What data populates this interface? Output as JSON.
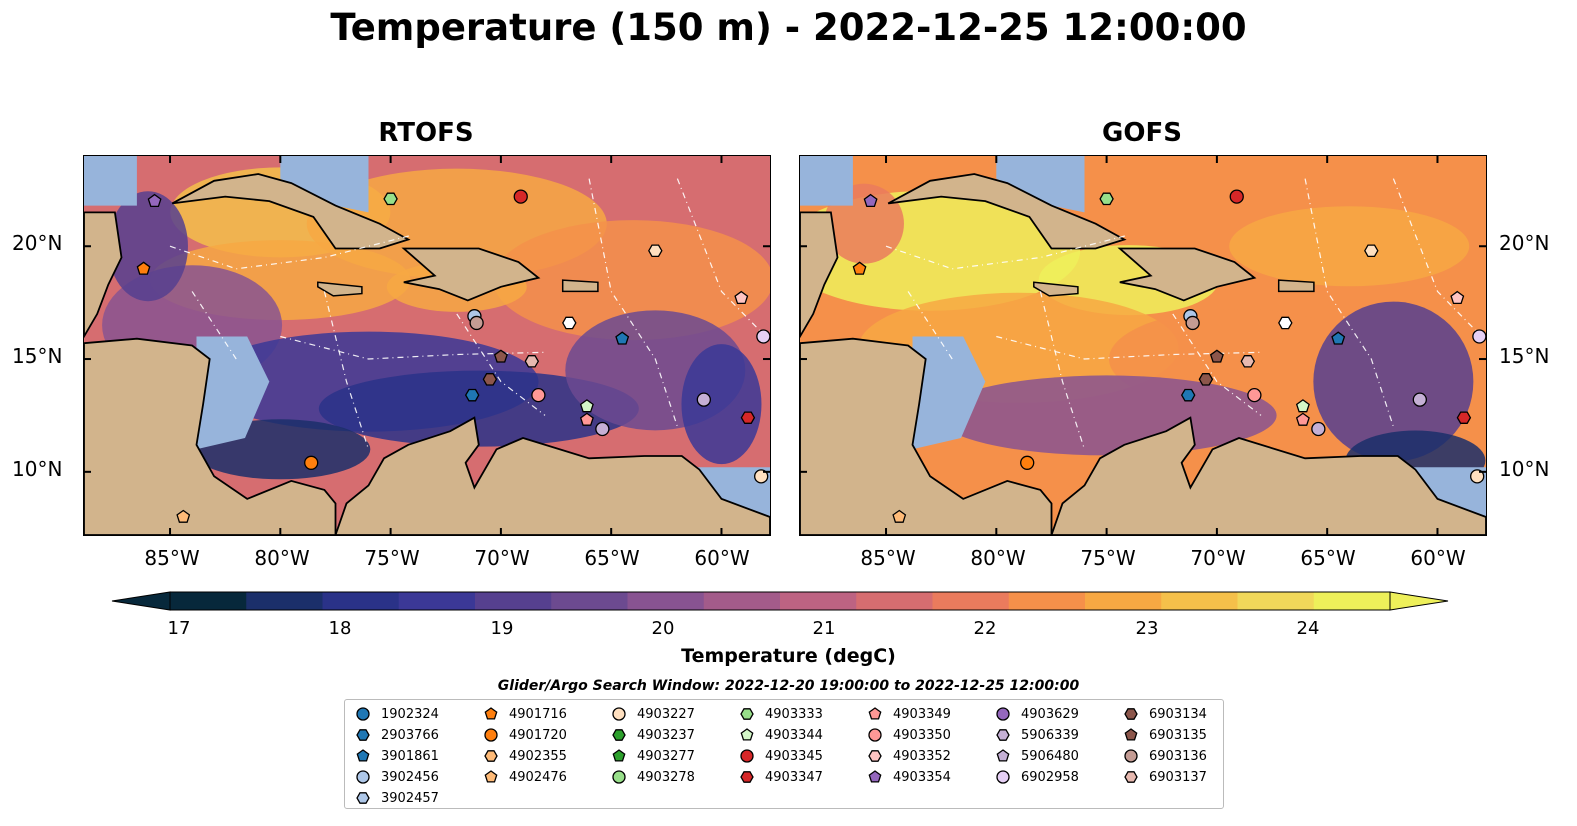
{
  "title": "Temperature (150 m) - 2022-12-25 12:00:00",
  "panels": [
    {
      "title": "RTOFS"
    },
    {
      "title": "GOFS"
    }
  ],
  "lat_labels": [
    "20°N",
    "15°N",
    "10°N"
  ],
  "lon_labels": [
    "85°W",
    "80°W",
    "75°W",
    "70°W",
    "65°W",
    "60°W"
  ],
  "colorbar": {
    "title": "Temperature (degC)",
    "ticks": [
      "17",
      "18",
      "19",
      "20",
      "21",
      "22",
      "23",
      "24"
    ],
    "min": 16.5,
    "max": 24.75,
    "step": 0.5,
    "colors": [
      "#07283b",
      "#1b2f6a",
      "#2a3288",
      "#3b3896",
      "#56408f",
      "#6c4a90",
      "#885391",
      "#a35b8a",
      "#bd6382",
      "#d66d70",
      "#ea7b5d",
      "#f5904a",
      "#f7a843",
      "#f5c04a",
      "#f1d85a",
      "#eef05a"
    ]
  },
  "colors": {
    "land": "#d2b48c",
    "shallow": "#97b4db",
    "deep_low": "#07283b",
    "warm": "#f59a3c"
  },
  "legend": {
    "title": "Glider/Argo Search Window: 2022-12-20 19:00:00 to 2022-12-25 12:00:00",
    "items": [
      {
        "id": "1902324",
        "marker": "circle",
        "color": "#1f77b4"
      },
      {
        "id": "2903766",
        "marker": "hexagon",
        "color": "#1f77b4"
      },
      {
        "id": "3901861",
        "marker": "pentagon",
        "color": "#1f77b4"
      },
      {
        "id": "3902456",
        "marker": "circle",
        "color": "#aec7e8"
      },
      {
        "id": "3902457",
        "marker": "hexagon",
        "color": "#aec7e8"
      },
      {
        "id": "4901716",
        "marker": "pentagon",
        "color": "#ff7f0e"
      },
      {
        "id": "4901720",
        "marker": "circle",
        "color": "#ff7f0e"
      },
      {
        "id": "4902355",
        "marker": "hexagon",
        "color": "#ffbb78"
      },
      {
        "id": "4902476",
        "marker": "pentagon",
        "color": "#ffbb78"
      },
      {
        "id": "4903227",
        "marker": "circle",
        "color": "#ffe0c0"
      },
      {
        "id": "4903237",
        "marker": "hexagon",
        "color": "#2ca02c"
      },
      {
        "id": "4903277",
        "marker": "pentagon",
        "color": "#2ca02c"
      },
      {
        "id": "4903278",
        "marker": "circle",
        "color": "#98df8a"
      },
      {
        "id": "4903333",
        "marker": "hexagon",
        "color": "#98df8a"
      },
      {
        "id": "4903344",
        "marker": "pentagon",
        "color": "#d4f7c8"
      },
      {
        "id": "4903345",
        "marker": "circle",
        "color": "#d62728"
      },
      {
        "id": "4903347",
        "marker": "hexagon",
        "color": "#d62728"
      },
      {
        "id": "4903349",
        "marker": "pentagon",
        "color": "#ff9896"
      },
      {
        "id": "4903350",
        "marker": "circle",
        "color": "#ff9896"
      },
      {
        "id": "4903352",
        "marker": "hexagon",
        "color": "#ffc4c2"
      },
      {
        "id": "4903354",
        "marker": "pentagon",
        "color": "#9467bd"
      },
      {
        "id": "4903629",
        "marker": "circle",
        "color": "#9467bd"
      },
      {
        "id": "5906339",
        "marker": "hexagon",
        "color": "#c5b0d5"
      },
      {
        "id": "5906480",
        "marker": "pentagon",
        "color": "#c5b0d5"
      },
      {
        "id": "6902958",
        "marker": "circle",
        "color": "#e6d0f5"
      },
      {
        "id": "6903134",
        "marker": "hexagon",
        "color": "#8c564b"
      },
      {
        "id": "6903135",
        "marker": "pentagon",
        "color": "#8c564b"
      },
      {
        "id": "6903136",
        "marker": "circle",
        "color": "#c49c94"
      },
      {
        "id": "6903137",
        "marker": "hexagon",
        "color": "#e7b9b0"
      }
    ]
  },
  "floats": [
    {
      "lon": -85.7,
      "lat": 22.0,
      "marker": "pentagon",
      "color": "#9467bd"
    },
    {
      "lon": -86.2,
      "lat": 19.0,
      "marker": "pentagon",
      "color": "#ff7f0e"
    },
    {
      "lon": -75.0,
      "lat": 22.1,
      "marker": "hexagon",
      "color": "#98df8a"
    },
    {
      "lon": -69.1,
      "lat": 22.2,
      "marker": "circle",
      "color": "#d62728"
    },
    {
      "lon": -63.0,
      "lat": 19.8,
      "marker": "hexagon",
      "color": "#ffe0c0"
    },
    {
      "lon": -59.1,
      "lat": 17.7,
      "marker": "pentagon",
      "color": "#ffc4c2"
    },
    {
      "lon": -71.2,
      "lat": 16.9,
      "marker": "circle",
      "color": "#aec7e8"
    },
    {
      "lon": -71.1,
      "lat": 16.6,
      "marker": "circle",
      "color": "#c49c94"
    },
    {
      "lon": -66.9,
      "lat": 16.6,
      "marker": "hexagon",
      "color": "#ffffff"
    },
    {
      "lon": -64.5,
      "lat": 15.9,
      "marker": "pentagon",
      "color": "#1f77b4"
    },
    {
      "lon": -58.1,
      "lat": 16.0,
      "marker": "circle",
      "color": "#e6d0f5"
    },
    {
      "lon": -70.0,
      "lat": 15.1,
      "marker": "pentagon",
      "color": "#8c564b"
    },
    {
      "lon": -68.6,
      "lat": 14.9,
      "marker": "hexagon",
      "color": "#e7b9b0"
    },
    {
      "lon": -70.5,
      "lat": 14.1,
      "marker": "hexagon",
      "color": "#8c564b"
    },
    {
      "lon": -71.3,
      "lat": 13.4,
      "marker": "hexagon",
      "color": "#1f77b4"
    },
    {
      "lon": -68.3,
      "lat": 13.4,
      "marker": "circle",
      "color": "#ff9896"
    },
    {
      "lon": -60.8,
      "lat": 13.2,
      "marker": "circle",
      "color": "#c5b0d5"
    },
    {
      "lon": -66.1,
      "lat": 12.9,
      "marker": "pentagon",
      "color": "#d4f7c8"
    },
    {
      "lon": -66.1,
      "lat": 12.3,
      "marker": "pentagon",
      "color": "#ff9896"
    },
    {
      "lon": -65.4,
      "lat": 11.9,
      "marker": "circle",
      "color": "#c5b0d5"
    },
    {
      "lon": -58.8,
      "lat": 12.4,
      "marker": "hexagon",
      "color": "#d62728"
    },
    {
      "lon": -78.6,
      "lat": 10.4,
      "marker": "circle",
      "color": "#ff7f0e"
    },
    {
      "lon": -84.4,
      "lat": 8.0,
      "marker": "pentagon",
      "color": "#ffbb78"
    },
    {
      "lon": -58.2,
      "lat": 9.8,
      "marker": "circle",
      "color": "#ffe0c0"
    }
  ]
}
